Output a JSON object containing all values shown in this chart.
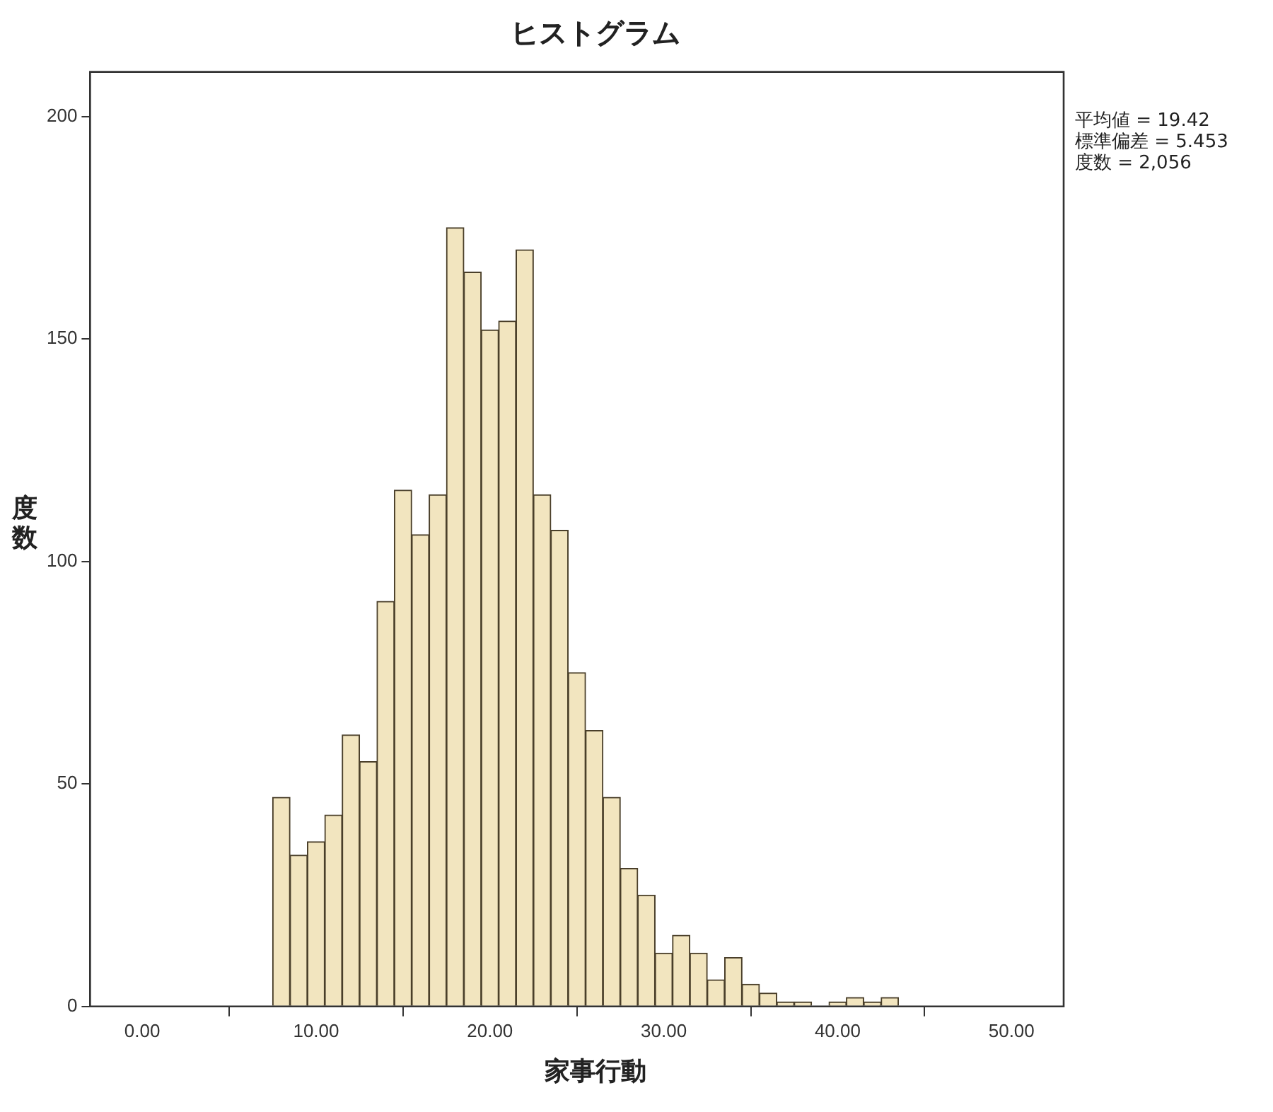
{
  "chart_data": {
    "type": "histogram",
    "title": "ヒストグラム",
    "xlabel": "家事行動",
    "ylabel": "度数",
    "bins": [
      7.5,
      8.5,
      9.5,
      10.5,
      11.5,
      12.5,
      13.5,
      14.5,
      15.5,
      16.5,
      17.5,
      18.5,
      19.5,
      20.5,
      21.5,
      22.5,
      23.5,
      24.5,
      25.5,
      26.5,
      27.5,
      28.5,
      29.5,
      30.5,
      31.5,
      32.5,
      33.5,
      34.5,
      35.5,
      36.5,
      37.5,
      38.5,
      39.5,
      40.5,
      41.5,
      42.5,
      43.5
    ],
    "values": [
      47,
      34,
      37,
      43,
      61,
      55,
      91,
      116,
      106,
      115,
      175,
      165,
      152,
      154,
      170,
      115,
      107,
      75,
      62,
      47,
      31,
      25,
      12,
      16,
      12,
      6,
      11,
      5,
      3,
      1,
      1,
      0,
      1,
      2,
      1,
      2
    ],
    "color": "#f2e5bf",
    "xlim": [
      -3,
      53
    ],
    "xticks": [
      {
        "value": 0,
        "label": "0.00"
      },
      {
        "value": 10,
        "label": "10.00"
      },
      {
        "value": 20,
        "label": "20.00"
      },
      {
        "value": 30,
        "label": "30.00"
      },
      {
        "value": 40,
        "label": "40.00"
      },
      {
        "value": 50,
        "label": "50.00"
      }
    ],
    "ylim": [
      0,
      210
    ],
    "yticks": [
      0,
      50,
      100,
      150,
      200
    ],
    "grid": false,
    "legend": false,
    "annotations": [
      "平均値 = 19.42",
      "標準偏差 = 5.453",
      "度数 = 2,056"
    ]
  }
}
